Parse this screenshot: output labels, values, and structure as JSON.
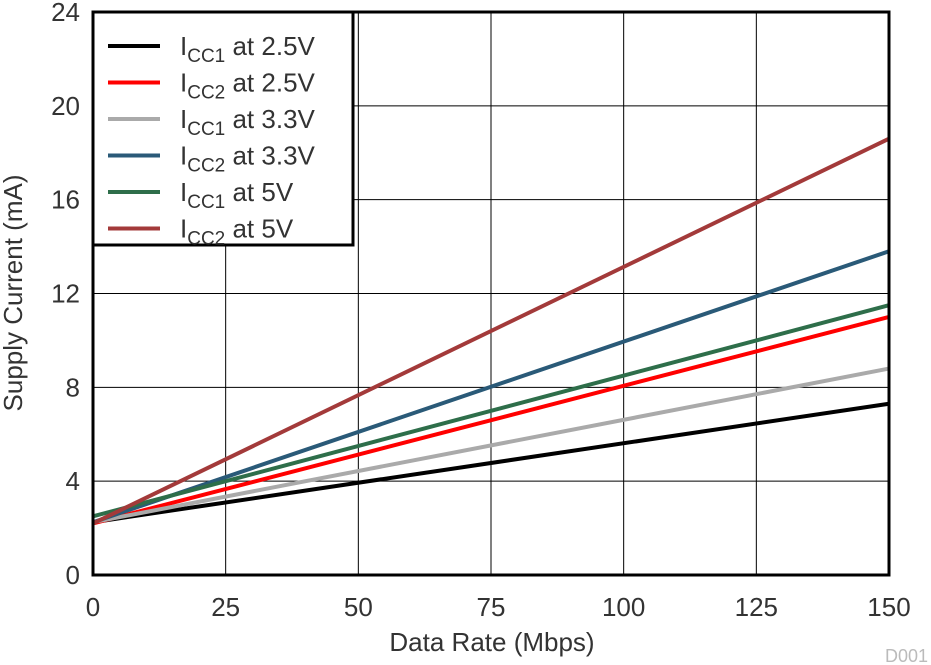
{
  "chart_data": {
    "type": "line",
    "title": "",
    "xlabel": "Data Rate (Mbps)",
    "ylabel": "Supply Current (mA)",
    "xlim": [
      0,
      150
    ],
    "ylim": [
      0,
      24
    ],
    "xticks": [
      0,
      25,
      50,
      75,
      100,
      125,
      150
    ],
    "yticks": [
      0,
      4,
      8,
      12,
      16,
      20,
      24
    ],
    "grid": true,
    "legend_position": "top-left",
    "x": [
      0,
      150
    ],
    "series": [
      {
        "name": "ICC1 at 2.5V",
        "base": "I",
        "sub": "CC1",
        "rest": " at 2.5V",
        "color": "#000000",
        "values": [
          2.25,
          7.3
        ]
      },
      {
        "name": "ICC2 at 2.5V",
        "base": "I",
        "sub": "CC2",
        "rest": " at 2.5V",
        "color": "#ff0000",
        "values": [
          2.2,
          11.0
        ]
      },
      {
        "name": "ICC1 at 3.3V",
        "base": "I",
        "sub": "CC1",
        "rest": " at 3.3V",
        "color": "#aaaaaa",
        "values": [
          2.25,
          8.8
        ]
      },
      {
        "name": "ICC2 at 3.3V",
        "base": "I",
        "sub": "CC2",
        "rest": " at 3.3V",
        "color": "#2a5a78",
        "values": [
          2.25,
          13.8
        ]
      },
      {
        "name": "ICC1 at 5V",
        "base": "I",
        "sub": "CC1",
        "rest": " at 5V",
        "color": "#2e6e4a",
        "values": [
          2.5,
          11.5
        ]
      },
      {
        "name": "ICC2 at 5V",
        "base": "I",
        "sub": "CC2",
        "rest": " at 5V",
        "color": "#a33a3a",
        "values": [
          2.2,
          18.6
        ]
      }
    ]
  },
  "figure_id": "D001"
}
